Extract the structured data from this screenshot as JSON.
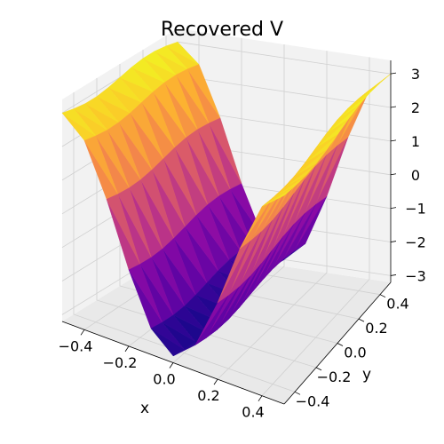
{
  "chart_data": {
    "type": "surface3d",
    "title": "Recovered V",
    "xlabel": "x",
    "ylabel": "y",
    "zlabel": "",
    "xlim": [
      -0.5,
      0.5
    ],
    "ylim": [
      -0.5,
      0.5
    ],
    "zlim": [
      -3.2,
      3.4
    ],
    "x_ticks": [
      -0.4,
      -0.2,
      0.0,
      0.2,
      0.4
    ],
    "x_tick_labels": [
      "−0.4",
      "−0.2",
      "0.0",
      "0.2",
      "0.4"
    ],
    "y_ticks": [
      -0.4,
      -0.2,
      0.0,
      0.2,
      0.4
    ],
    "y_tick_labels": [
      "−0.4",
      "−0.2",
      "0.0",
      "0.2",
      "0.4"
    ],
    "z_ticks": [
      -3,
      -2,
      -1,
      0,
      1,
      2,
      3
    ],
    "z_tick_labels": [
      "−3",
      "−2",
      "−1",
      "0",
      "1",
      "2",
      "3"
    ],
    "colormap": "plasma",
    "grid": true,
    "surface": {
      "description": "Smooth surface approximately z = -3*cos(2*pi*x) on the square [-0.5,0.5]^2: low near x=0, high near x=±0.5, ridges running parallel to the y axis",
      "x": [
        -0.5,
        -0.4,
        -0.3,
        -0.2,
        -0.1,
        0.0,
        0.1,
        0.2,
        0.3,
        0.4,
        0.5
      ],
      "y": [
        -0.5,
        -0.4,
        -0.3,
        -0.2,
        -0.1,
        0.0,
        0.1,
        0.2,
        0.3,
        0.4,
        0.5
      ],
      "z_profile_along_x": [
        3.0,
        2.43,
        0.93,
        -0.93,
        -2.43,
        -3.0,
        -2.43,
        -0.93,
        0.93,
        2.43,
        3.0
      ]
    }
  },
  "colors": {
    "pane_xy": "#e9e9e9",
    "pane_side": "#f2f2f2",
    "grid": "#d0d0d0",
    "plasma_low": "#0d0887",
    "plasma_high": "#f0f921"
  }
}
